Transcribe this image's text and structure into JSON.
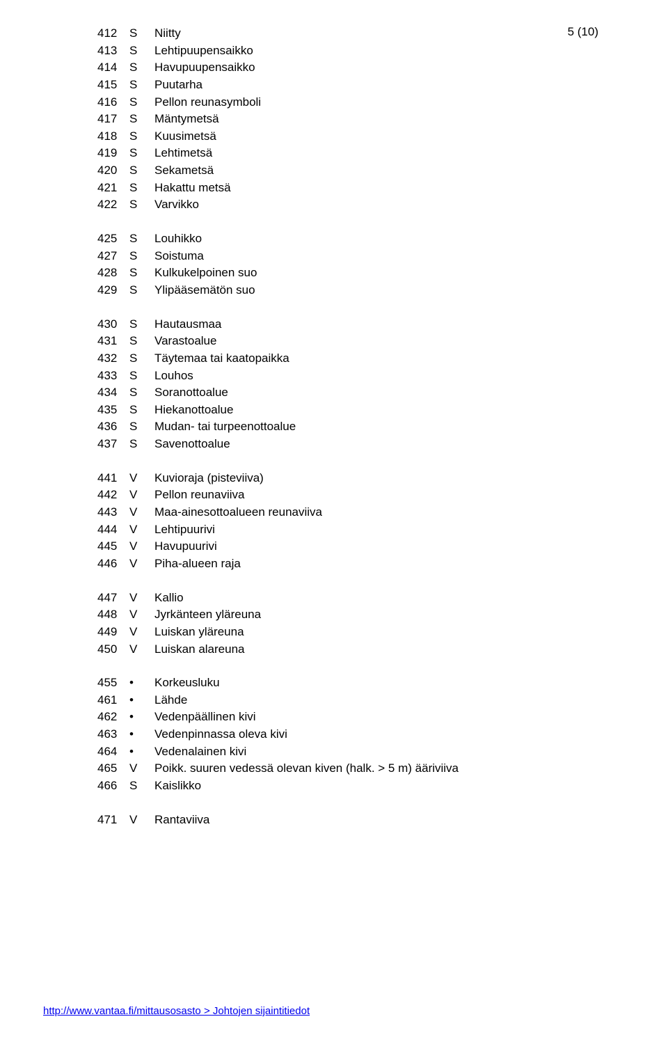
{
  "page_number": "5 (10)",
  "groups": [
    [
      {
        "code": "412",
        "type": "S",
        "desc": "Niitty"
      },
      {
        "code": "413",
        "type": "S",
        "desc": "Lehtipuupensaikko"
      },
      {
        "code": "414",
        "type": "S",
        "desc": "Havupuupensaikko"
      },
      {
        "code": "415",
        "type": "S",
        "desc": "Puutarha"
      },
      {
        "code": "416",
        "type": "S",
        "desc": "Pellon reunasymboli"
      },
      {
        "code": "417",
        "type": "S",
        "desc": "Mäntymetsä"
      },
      {
        "code": "418",
        "type": "S",
        "desc": "Kuusimetsä"
      },
      {
        "code": "419",
        "type": "S",
        "desc": "Lehtimetsä"
      },
      {
        "code": "420",
        "type": "S",
        "desc": "Sekametsä"
      },
      {
        "code": "421",
        "type": "S",
        "desc": "Hakattu metsä"
      },
      {
        "code": "422",
        "type": "S",
        "desc": "Varvikko"
      }
    ],
    [
      {
        "code": "425",
        "type": "S",
        "desc": "Louhikko"
      },
      {
        "code": "427",
        "type": "S",
        "desc": "Soistuma"
      },
      {
        "code": "428",
        "type": "S",
        "desc": "Kulkukelpoinen suo"
      },
      {
        "code": "429",
        "type": "S",
        "desc": "Ylipääsemätön suo"
      }
    ],
    [
      {
        "code": "430",
        "type": "S",
        "desc": "Hautausmaa"
      },
      {
        "code": "431",
        "type": "S",
        "desc": "Varastoalue"
      },
      {
        "code": "432",
        "type": "S",
        "desc": "Täytemaa tai kaatopaikka"
      },
      {
        "code": "433",
        "type": "S",
        "desc": "Louhos"
      },
      {
        "code": "434",
        "type": "S",
        "desc": "Soranottoalue"
      },
      {
        "code": "435",
        "type": "S",
        "desc": "Hiekanottoalue"
      },
      {
        "code": "436",
        "type": "S",
        "desc": "Mudan- tai turpeenottoalue"
      },
      {
        "code": "437",
        "type": "S",
        "desc": "Savenottoalue"
      }
    ],
    [
      {
        "code": "441",
        "type": "V",
        "desc": "Kuvioraja (pisteviiva)"
      },
      {
        "code": "442",
        "type": "V",
        "desc": "Pellon reunaviiva"
      },
      {
        "code": "443",
        "type": "V",
        "desc": "Maa-ainesottoalueen reunaviiva"
      },
      {
        "code": "444",
        "type": "V",
        "desc": "Lehtipuurivi"
      },
      {
        "code": "445",
        "type": "V",
        "desc": "Havupuurivi"
      },
      {
        "code": "446",
        "type": "V",
        "desc": "Piha-alueen raja"
      }
    ],
    [
      {
        "code": "447",
        "type": "V",
        "desc": "Kallio"
      },
      {
        "code": "448",
        "type": "V",
        "desc": "Jyrkänteen yläreuna"
      },
      {
        "code": "449",
        "type": "V",
        "desc": "Luiskan yläreuna"
      },
      {
        "code": "450",
        "type": "V",
        "desc": "Luiskan alareuna"
      }
    ],
    [
      {
        "code": "455",
        "type": "•",
        "desc": "Korkeusluku"
      },
      {
        "code": "461",
        "type": "•",
        "desc": "Lähde"
      },
      {
        "code": "462",
        "type": "•",
        "desc": "Vedenpäällinen kivi"
      },
      {
        "code": "463",
        "type": "•",
        "desc": "Vedenpinnassa oleva kivi"
      },
      {
        "code": "464",
        "type": "•",
        "desc": "Vedenalainen kivi"
      },
      {
        "code": "465",
        "type": "V",
        "desc": "Poikk. suuren vedessä olevan kiven (halk. > 5 m) ääriviiva"
      },
      {
        "code": "466",
        "type": "S",
        "desc": "Kaislikko"
      }
    ],
    [
      {
        "code": "471",
        "type": "V",
        "desc": "Rantaviiva"
      }
    ]
  ],
  "footer": "http://www.vantaa.fi/mittausosasto > Johtojen sijaintitiedot"
}
